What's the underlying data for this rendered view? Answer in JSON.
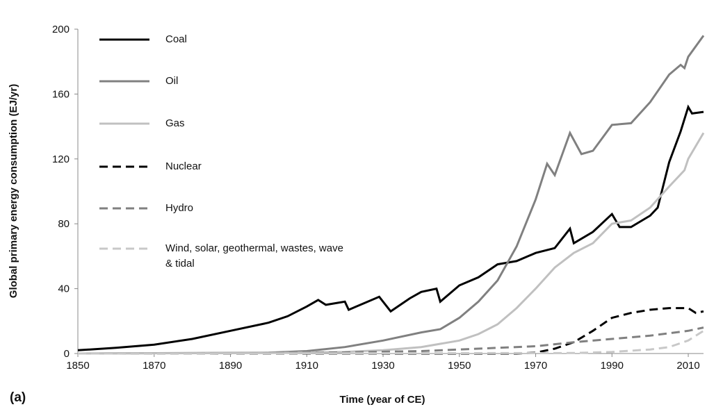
{
  "chart_data": {
    "type": "line",
    "xlabel": "Time (year of CE)",
    "ylabel": "Global primary energy consumption (EJ/yr)",
    "annotation": "(a)",
    "xlim": [
      1850,
      2014
    ],
    "xticks": [
      1850,
      1870,
      1890,
      1910,
      1930,
      1950,
      1970,
      1990,
      2010
    ],
    "ylim": [
      0,
      200
    ],
    "yticks": [
      0,
      40,
      80,
      120,
      160,
      200
    ],
    "series": [
      {
        "name": "Coal",
        "color": "#000000",
        "dash": false,
        "x": [
          1850,
          1860,
          1870,
          1880,
          1890,
          1900,
          1905,
          1910,
          1913,
          1915,
          1920,
          1921,
          1925,
          1929,
          1932,
          1937,
          1940,
          1944,
          1945,
          1950,
          1955,
          1960,
          1965,
          1970,
          1975,
          1979,
          1980,
          1985,
          1990,
          1992,
          1995,
          2000,
          2002,
          2005,
          2008,
          2010,
          2011,
          2014
        ],
        "values": [
          2,
          3.5,
          5.5,
          9,
          14,
          19,
          23,
          29,
          33,
          30,
          32,
          27,
          31,
          35,
          26,
          34,
          38,
          40,
          32,
          42,
          47,
          55,
          57,
          62,
          65,
          77,
          68,
          75,
          86,
          78,
          78,
          85,
          90,
          118,
          137,
          152,
          148,
          149
        ]
      },
      {
        "name": "Oil",
        "color": "#808080",
        "dash": false,
        "x": [
          1850,
          1900,
          1910,
          1920,
          1930,
          1940,
          1945,
          1950,
          1955,
          1960,
          1965,
          1970,
          1973,
          1975,
          1979,
          1982,
          1985,
          1990,
          1995,
          2000,
          2005,
          2008,
          2009,
          2010,
          2014
        ],
        "values": [
          0,
          0.5,
          1.5,
          4,
          8,
          13,
          15,
          22,
          32,
          45,
          66,
          95,
          117,
          110,
          136,
          123,
          125,
          141,
          142,
          155,
          172,
          178,
          176,
          183,
          196
        ]
      },
      {
        "name": "Gas",
        "color": "#c0c0c0",
        "dash": false,
        "x": [
          1850,
          1900,
          1920,
          1930,
          1940,
          1950,
          1955,
          1960,
          1965,
          1970,
          1975,
          1980,
          1985,
          1990,
          1995,
          2000,
          2005,
          2009,
          2010,
          2014
        ],
        "values": [
          0,
          0.3,
          1,
          2,
          4,
          8,
          12,
          18,
          28,
          40,
          53,
          62,
          68,
          80,
          82,
          90,
          103,
          113,
          120,
          136
        ]
      },
      {
        "name": "Nuclear",
        "color": "#000000",
        "dash": true,
        "x": [
          1850,
          1965,
          1970,
          1975,
          1980,
          1985,
          1990,
          1995,
          2000,
          2005,
          2010,
          2012,
          2014
        ],
        "values": [
          0,
          0,
          0.5,
          3,
          7,
          14,
          22,
          25,
          27,
          28,
          28,
          25,
          26
        ]
      },
      {
        "name": "Hydro",
        "color": "#808080",
        "dash": true,
        "x": [
          1850,
          1900,
          1920,
          1940,
          1950,
          1960,
          1970,
          1980,
          1990,
          2000,
          2010,
          2014
        ],
        "values": [
          0,
          0.2,
          0.7,
          1.5,
          2.5,
          3.5,
          4.5,
          7,
          9,
          11,
          14,
          16
        ]
      },
      {
        "name": "Wind, solar, geothermal, wastes, wave & tidal",
        "color": "#c8c8c8",
        "dash": true,
        "x": [
          1850,
          1980,
          1990,
          2000,
          2005,
          2010,
          2014
        ],
        "values": [
          0,
          0.3,
          1,
          2.5,
          4,
          8,
          14
        ]
      }
    ]
  }
}
